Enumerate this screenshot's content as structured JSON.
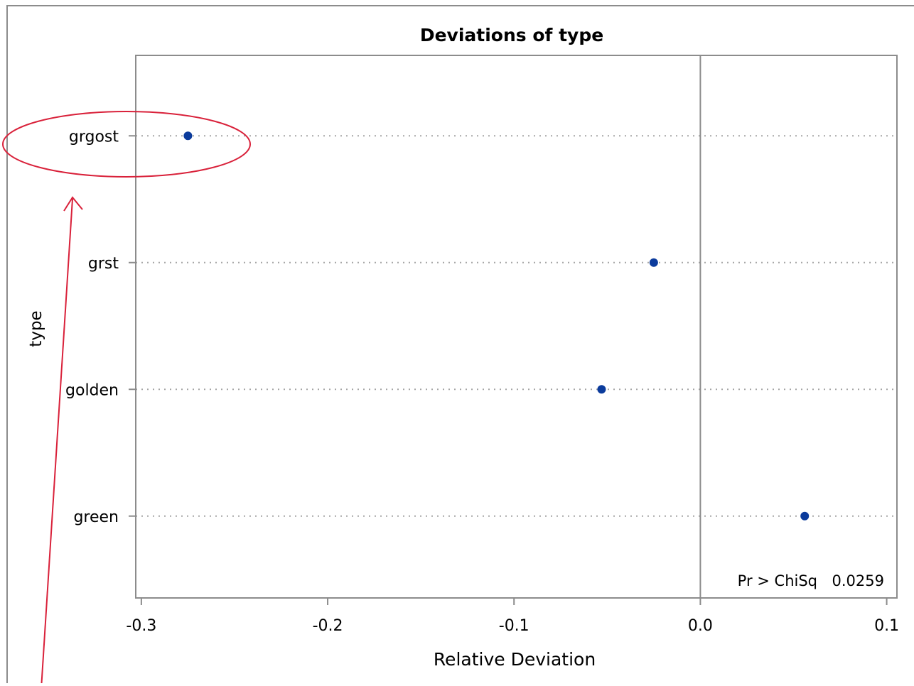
{
  "chart_data": {
    "type": "scatter",
    "title": "Deviations of type",
    "xlabel": "Relative Deviation",
    "ylabel": "type",
    "categories": [
      "grgost",
      "grst",
      "golden",
      "green"
    ],
    "values": [
      -0.275,
      -0.025,
      -0.053,
      0.056
    ],
    "xlim": [
      -0.303,
      0.1055
    ],
    "xticks": [
      -0.3,
      -0.2,
      -0.1,
      0.0,
      0.1
    ],
    "xtick_labels": [
      "-0.3",
      "-0.2",
      "-0.1",
      "0.0",
      "0.1"
    ],
    "reference_line_x": 0.0,
    "grid": "horizontal dotted reference lines",
    "marker_color": "#0b3b9c",
    "annotation": {
      "label": "Pr > ChiSq",
      "value": "0.0259"
    },
    "highlight": {
      "category": "grgost",
      "color": "#d9213a",
      "shape": "ellipse with arrow"
    }
  }
}
